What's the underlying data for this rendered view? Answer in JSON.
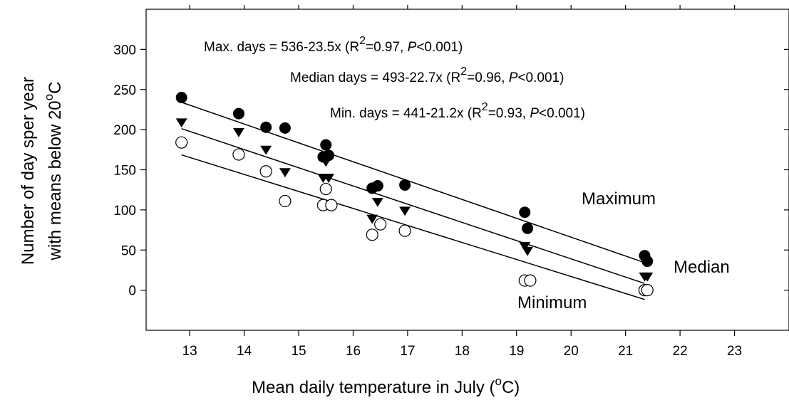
{
  "chart_data": {
    "type": "scatter",
    "title": "",
    "xlabel": "Mean daily temperature in July (",
    "xlabel_sup": "o",
    "xlabel_end": "C)",
    "ylabel_line1": "Number of day sper year",
    "ylabel_line2": "with means below 20",
    "ylabel_sup": "o",
    "ylabel_end": "C",
    "xlim": [
      12.2,
      24
    ],
    "ylim": [
      -50,
      350
    ],
    "xticks": [
      "13",
      "14",
      "15",
      "16",
      "17",
      "18",
      "19",
      "20",
      "21",
      "22",
      "23"
    ],
    "yticks": [
      "0",
      "50",
      "100",
      "150",
      "200",
      "250",
      "300"
    ],
    "grid": false,
    "series": [
      {
        "name": "Maximum",
        "marker": "filled-circle",
        "color": "#000000",
        "fit": {
          "intercept": 536,
          "slope": -23.5
        },
        "points": [
          [
            12.85,
            240
          ],
          [
            13.9,
            220
          ],
          [
            14.4,
            203
          ],
          [
            14.75,
            202
          ],
          [
            15.5,
            181
          ],
          [
            15.45,
            166
          ],
          [
            15.55,
            168
          ],
          [
            16.35,
            127
          ],
          [
            16.45,
            130
          ],
          [
            16.95,
            131
          ],
          [
            19.15,
            97
          ],
          [
            19.2,
            77
          ],
          [
            21.35,
            43
          ],
          [
            21.4,
            36
          ]
        ]
      },
      {
        "name": "Median",
        "marker": "filled-triangle-down",
        "color": "#000000",
        "fit": {
          "intercept": 493,
          "slope": -22.7
        },
        "points": [
          [
            12.85,
            209
          ],
          [
            13.9,
            197
          ],
          [
            14.4,
            175
          ],
          [
            14.75,
            147
          ],
          [
            15.5,
            160
          ],
          [
            15.45,
            140
          ],
          [
            15.55,
            140
          ],
          [
            16.35,
            89
          ],
          [
            16.45,
            110
          ],
          [
            16.95,
            99
          ],
          [
            19.15,
            55
          ],
          [
            19.2,
            49
          ],
          [
            21.35,
            17
          ],
          [
            21.4,
            17
          ]
        ]
      },
      {
        "name": "Minimum",
        "marker": "open-circle",
        "color": "#000000",
        "fit": {
          "intercept": 441,
          "slope": -21.2
        },
        "points": [
          [
            12.85,
            184
          ],
          [
            13.9,
            169
          ],
          [
            14.4,
            148
          ],
          [
            14.75,
            111
          ],
          [
            15.5,
            126
          ],
          [
            15.45,
            106
          ],
          [
            15.6,
            106
          ],
          [
            16.35,
            69
          ],
          [
            16.5,
            82
          ],
          [
            16.95,
            74
          ],
          [
            19.15,
            12
          ],
          [
            19.25,
            12
          ],
          [
            21.35,
            0
          ],
          [
            21.4,
            0
          ]
        ]
      }
    ],
    "annotations": [
      {
        "id": "max",
        "pre": "Max. days = 536-23.5x (R",
        "sup": "2",
        "mid": "=0.97, ",
        "ital": "P",
        "post": "<0.001)"
      },
      {
        "id": "median",
        "pre": "Median days = 493-22.7x (R",
        "sup": "2",
        "mid": "=0.96, ",
        "ital": "P",
        "post": "<0.001)"
      },
      {
        "id": "min",
        "pre": "Min. days = 441-21.2x (R",
        "sup": "2",
        "mid": "=0.93, ",
        "ital": "P",
        "post": "<0.001)"
      }
    ]
  }
}
